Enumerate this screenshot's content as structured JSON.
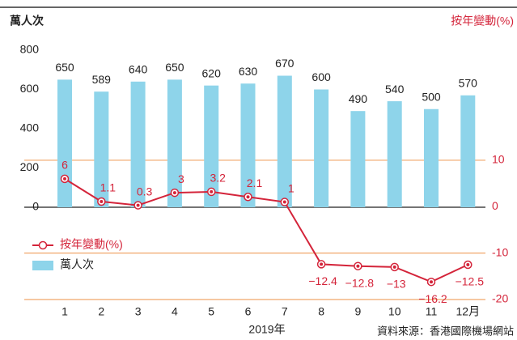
{
  "chart_data": {
    "type": "bar_line",
    "y_label": "萬人次",
    "y2_label": "按年變動(%)",
    "x_label": "2019年",
    "source": "資料來源：香港國際機場網站",
    "categories": [
      "1",
      "2",
      "3",
      "4",
      "5",
      "6",
      "7",
      "8",
      "9",
      "10",
      "11",
      "12月"
    ],
    "series": [
      {
        "name": "萬人次",
        "type": "bar",
        "color": "#8ed4ea",
        "values": [
          650,
          589,
          640,
          650,
          620,
          630,
          670,
          600,
          490,
          540,
          500,
          570
        ]
      },
      {
        "name": "按年變動(%)",
        "type": "line",
        "axis": "y2",
        "color": "#d4243a",
        "values": [
          6,
          1.1,
          0.3,
          3,
          3.2,
          2.1,
          1,
          -12.4,
          -12.8,
          -13,
          -16.2,
          -12.5
        ],
        "value_labels": [
          "6",
          "1.1",
          "0.3",
          "3",
          "3.2",
          "2.1",
          "1",
          "−12.4",
          "−12.8",
          "−13",
          "−16.2",
          "−12.5"
        ]
      }
    ],
    "ylim": [
      -470,
      800
    ],
    "yticks": [
      0,
      200,
      400,
      600,
      800
    ],
    "y2lim": [
      -20,
      33.7
    ],
    "y2ticks": [
      10,
      0,
      -10,
      -20
    ]
  }
}
